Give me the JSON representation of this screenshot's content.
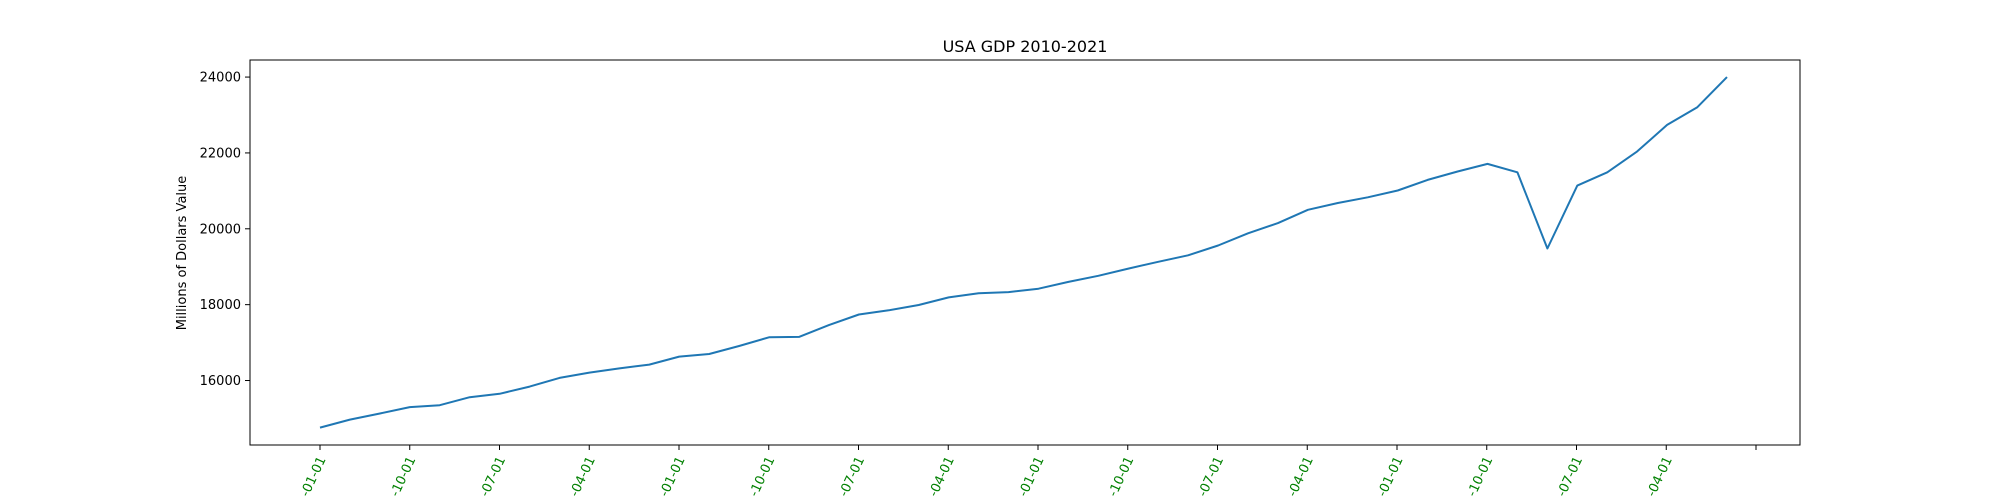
{
  "chart_data": {
    "type": "line",
    "title": "USA GDP 2010-2021",
    "xlabel": "",
    "ylabel": "Millions of Dollars Value",
    "ylim": [
      14300,
      24450
    ],
    "y_ticks": [
      16000,
      18000,
      20000,
      22000,
      24000
    ],
    "x_tick_labels": [
      "-01-01",
      "-10-01",
      "-07-01",
      "-04-01",
      "-01-01",
      "-10-01",
      "-07-01",
      "-04-01",
      "-01-01",
      "-10-01",
      "-07-01",
      "-04-01",
      "-01-01",
      "-10-01",
      "-07-01",
      "-04-01"
    ],
    "x_tick_color": "#008000",
    "line_color": "#1f77b4",
    "grid": false,
    "series": [
      {
        "values": [
          14760,
          14970,
          15130,
          15300,
          15350,
          15560,
          15650,
          15840,
          16070,
          16210,
          16320,
          16420,
          16630,
          16700,
          16910,
          17140,
          17150,
          17460,
          17740,
          17850,
          17990,
          18190,
          18300,
          18330,
          18420,
          18600,
          18760,
          18950,
          19130,
          19300,
          19560,
          19880,
          20150,
          20500,
          20680,
          20830,
          21010,
          21290,
          21510,
          21710,
          21490,
          19480,
          21140,
          21490,
          22040,
          22740,
          23200,
          24000
        ]
      }
    ]
  }
}
